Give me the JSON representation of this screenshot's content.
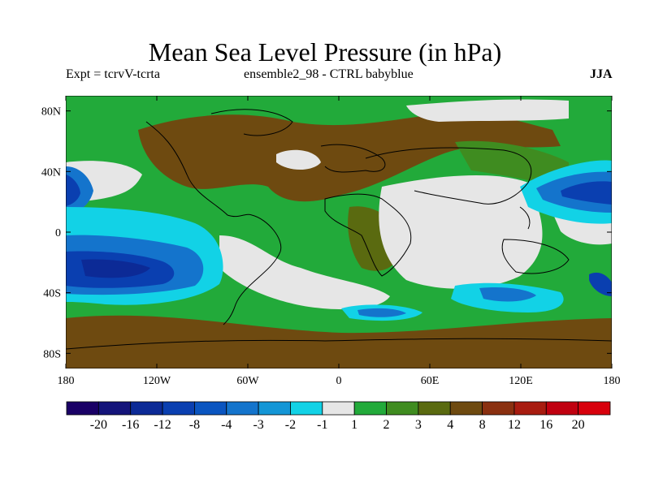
{
  "title": "Mean Sea Level Pressure (in hPa)",
  "subtitle_left": "Expt = tcrvV-tcrta",
  "subtitle_center": "ensemble2_98 - CTRL babyblue",
  "subtitle_right": "JJA",
  "lat_labels": [
    "80N",
    "40N",
    "0",
    "40S",
    "80S"
  ],
  "lon_labels": [
    "180",
    "120W",
    "60W",
    "0",
    "60E",
    "120E",
    "180"
  ],
  "colorbar": {
    "labels": [
      "-20",
      "-16",
      "-12",
      "-8",
      "-4",
      "-3",
      "-2",
      "-1",
      "1",
      "2",
      "3",
      "4",
      "8",
      "12",
      "16",
      "20"
    ],
    "colors": [
      "#1a0066",
      "#14147a",
      "#0c2a96",
      "#0a3fb0",
      "#0a55c0",
      "#1474cc",
      "#1496d6",
      "#12d2e6",
      "#e6e6e6",
      "#22aa3a",
      "#3f8c20",
      "#5a6a10",
      "#6e4a10",
      "#8a3010",
      "#a81c10",
      "#c00010",
      "#d8000c"
    ]
  }
}
